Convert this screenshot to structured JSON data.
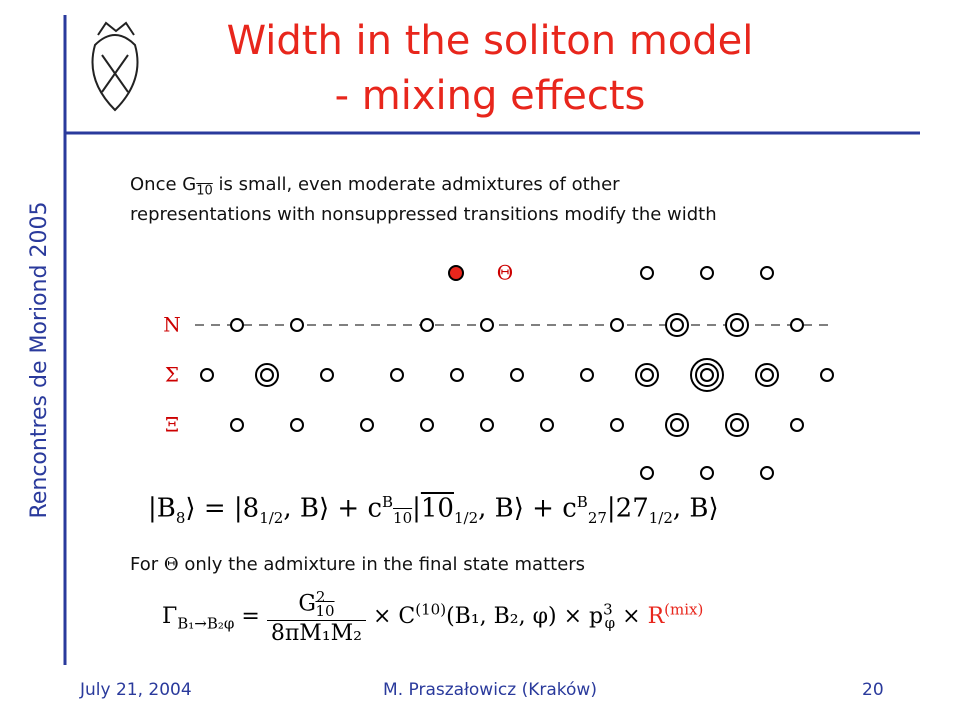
{
  "sidebar": "Rencontres de Moriond 2005",
  "title": {
    "line_1": "Width in the soliton model",
    "line_2": "- mixing effects"
  },
  "intro": {
    "once": "Once G",
    "sub": "10",
    "rest": " is small, even moderate admixtures of other",
    "line_2": "representations with nonsuppressed transitions modify the width"
  },
  "diagram": {
    "theta": "Θ",
    "n": "N",
    "sigma": "Σ",
    "xi": "Ξ"
  },
  "formula_1": [
    "|B",
    "8",
    "⟩ = ",
    "|8",
    "1/2",
    ", B⟩ + c",
    "B",
    "10",
    "|",
    "10",
    "1/2",
    ", B⟩ + c",
    "B",
    "27",
    "|27",
    "1/2",
    ", B⟩"
  ],
  "note": {
    "for": "For ",
    "theta": "Θ",
    "rest": " only the admixture in the final state matters"
  },
  "formula_2": [
    "Γ",
    "B₁→B₂φ",
    " = ",
    "G",
    "2",
    "10",
    "8πM₁M₂",
    " × C",
    "(10)",
    "(B₁, B₂, φ) × p",
    "3",
    "φ",
    " × ",
    "R",
    "(mix)"
  ],
  "footer": {
    "date": "July 21, 2004",
    "author": "M. Praszałowicz (Kraków)",
    "page": "20"
  }
}
